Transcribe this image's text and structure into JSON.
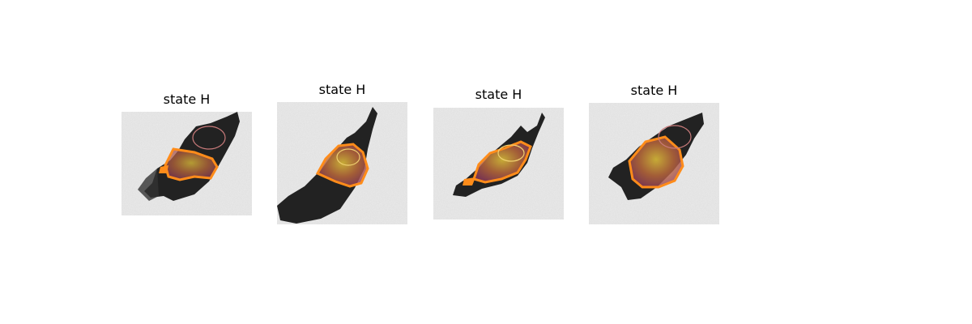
{
  "panels": [
    {
      "title": "state H"
    },
    {
      "title": "state H"
    },
    {
      "title": "state H"
    },
    {
      "title": "state H"
    }
  ],
  "colors": {
    "background": "#e2e2e2",
    "cell": "#111111",
    "region_fill": "#c8821e",
    "region_outline": "#ff8c1a",
    "inner_outline": "#c87a7a"
  }
}
